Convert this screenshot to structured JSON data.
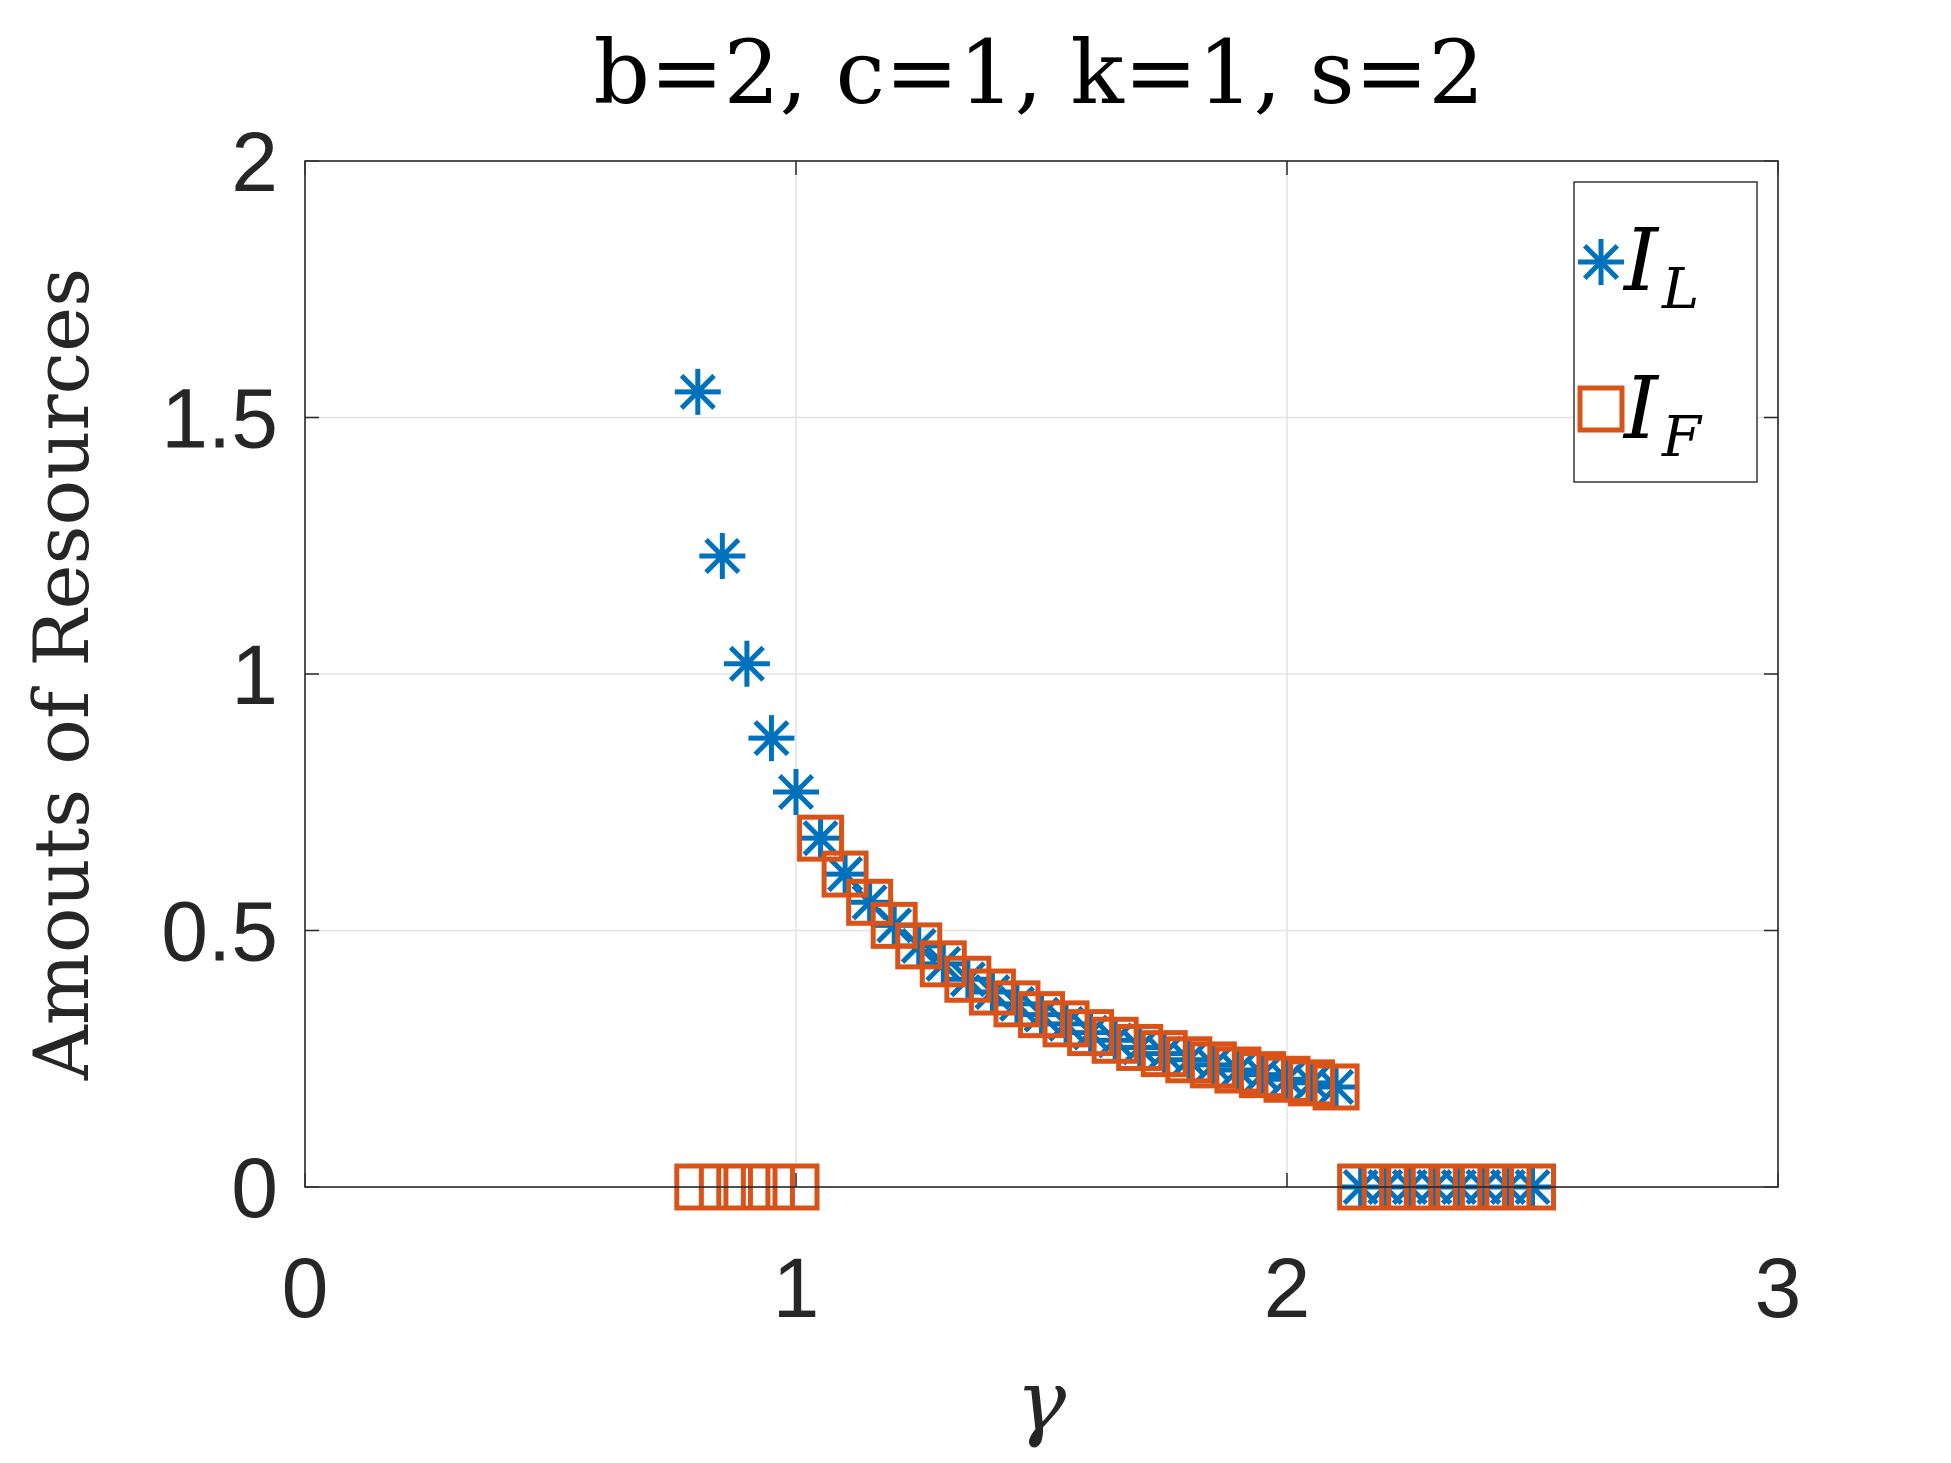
{
  "chart_data": {
    "type": "scatter",
    "title": "b=2, c=1, k=1, s=2",
    "xlabel": "γ",
    "ylabel": "Amouts of Resources",
    "xlim": [
      0,
      3
    ],
    "ylim": [
      0,
      2
    ],
    "xticks": [
      "0",
      "1",
      "2",
      "3"
    ],
    "yticks": [
      "0",
      "0.5",
      "1",
      "1.5",
      "2"
    ],
    "grid": true,
    "legend_position": "top-right",
    "series": [
      {
        "name": "I_L",
        "label_main": "I",
        "label_sub": "L",
        "marker": "asterisk",
        "color": "#0072BD",
        "x": [
          0.8,
          0.85,
          0.9,
          0.95,
          1.0,
          1.05,
          1.1,
          1.15,
          1.2,
          1.25,
          1.3,
          1.35,
          1.4,
          1.45,
          1.5,
          1.55,
          1.6,
          1.65,
          1.7,
          1.75,
          1.8,
          1.85,
          1.9,
          1.95,
          2.0,
          2.05,
          2.1,
          2.15,
          2.2,
          2.25,
          2.3,
          2.35,
          2.4,
          2.45,
          2.5
        ],
        "y": [
          1.55,
          1.23,
          1.02,
          0.875,
          0.77,
          0.68,
          0.61,
          0.555,
          0.51,
          0.47,
          0.435,
          0.405,
          0.38,
          0.357,
          0.336,
          0.318,
          0.301,
          0.286,
          0.272,
          0.26,
          0.248,
          0.238,
          0.228,
          0.219,
          0.21,
          0.203,
          0.195,
          0,
          0,
          0,
          0,
          0,
          0,
          0,
          0
        ]
      },
      {
        "name": "I_F",
        "label_main": "I",
        "label_sub": "F",
        "marker": "square",
        "color": "#D95319",
        "x": [
          0.8,
          0.85,
          0.9,
          0.95,
          1.0,
          1.05,
          1.1,
          1.15,
          1.2,
          1.25,
          1.3,
          1.35,
          1.4,
          1.45,
          1.5,
          1.55,
          1.6,
          1.65,
          1.7,
          1.75,
          1.8,
          1.85,
          1.9,
          1.95,
          2.0,
          2.05,
          2.1,
          2.15,
          2.2,
          2.25,
          2.3,
          2.35,
          2.4,
          2.45,
          2.5
        ],
        "y": [
          0,
          0,
          0,
          0,
          0,
          0.68,
          0.61,
          0.555,
          0.51,
          0.47,
          0.435,
          0.405,
          0.38,
          0.357,
          0.336,
          0.318,
          0.301,
          0.286,
          0.272,
          0.26,
          0.248,
          0.238,
          0.228,
          0.219,
          0.21,
          0.203,
          0.195,
          0,
          0,
          0,
          0,
          0,
          0,
          0,
          0
        ]
      }
    ]
  }
}
